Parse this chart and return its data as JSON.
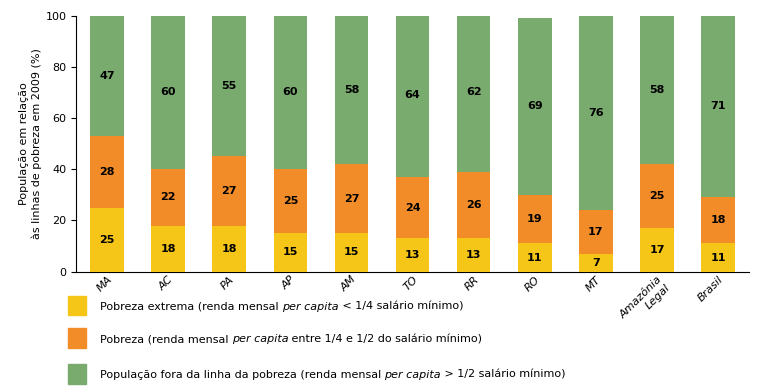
{
  "categories": [
    "MA",
    "AC",
    "PA",
    "AP",
    "AM",
    "TO",
    "RR",
    "RO",
    "MT",
    "Amazônia\nLegal",
    "Brasil"
  ],
  "pobreza_extrema": [
    25,
    18,
    18,
    15,
    15,
    13,
    13,
    11,
    7,
    17,
    11
  ],
  "pobreza": [
    28,
    22,
    27,
    25,
    27,
    24,
    26,
    19,
    17,
    25,
    18
  ],
  "fora_pobreza": [
    47,
    60,
    55,
    60,
    58,
    64,
    62,
    69,
    76,
    58,
    71
  ],
  "color_extrema": "#f5c518",
  "color_pobreza": "#f28c28",
  "color_fora": "#7aab6e",
  "ylabel": "População em relação\nàs linhas de pobreza em 2009 (%)",
  "ylim": [
    0,
    100
  ],
  "bar_width": 0.55,
  "fontsize_labels": 8,
  "fontsize_ticks": 8,
  "fontsize_ylabel": 8,
  "fontsize_legend": 8
}
